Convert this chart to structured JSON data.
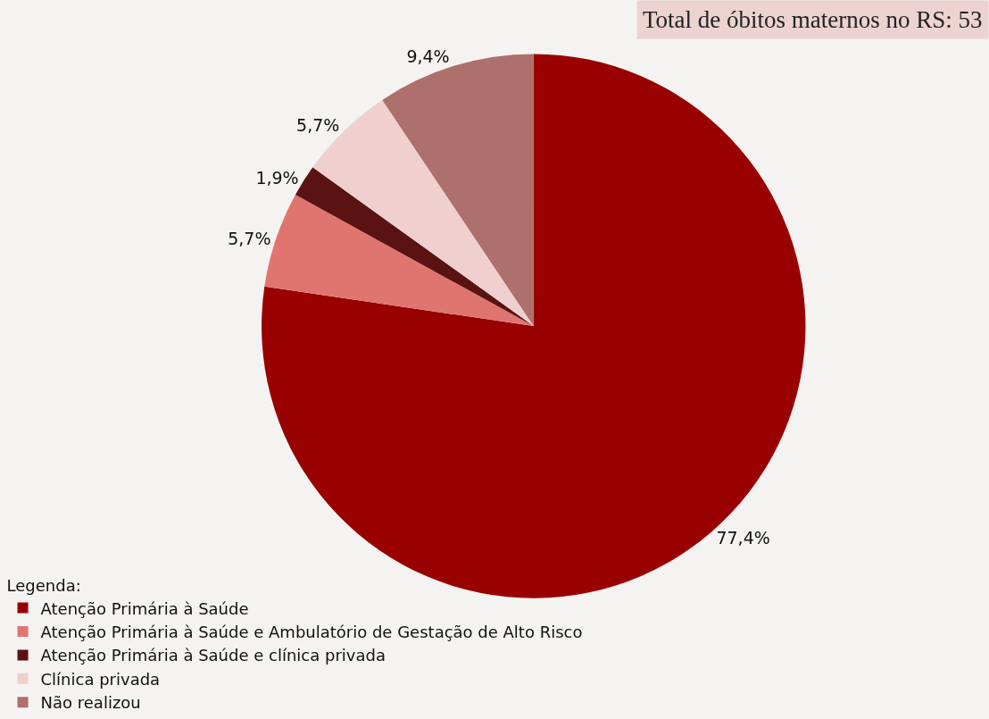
{
  "chart_data": {
    "type": "pie",
    "title": "Total de óbitos maternos no RS: 53",
    "legend_title": "Legenda:",
    "categories": [
      "Atenção Primária à Saúde",
      "Atenção Primária à Saúde e Ambulatório de Gestação de Alto Risco",
      "Atenção Primária à Saúde e clínica privada",
      "Clínica privada",
      "Não realizou"
    ],
    "values": [
      77.4,
      5.7,
      1.9,
      5.7,
      9.4
    ],
    "value_labels": [
      "77,4%",
      "5,7%",
      "1,9%",
      "5,7%",
      "9,4%"
    ],
    "colors": [
      "#990000",
      "#e07570",
      "#5a1212",
      "#f0d0cf",
      "#ae706c"
    ],
    "legend": "bottom left"
  }
}
